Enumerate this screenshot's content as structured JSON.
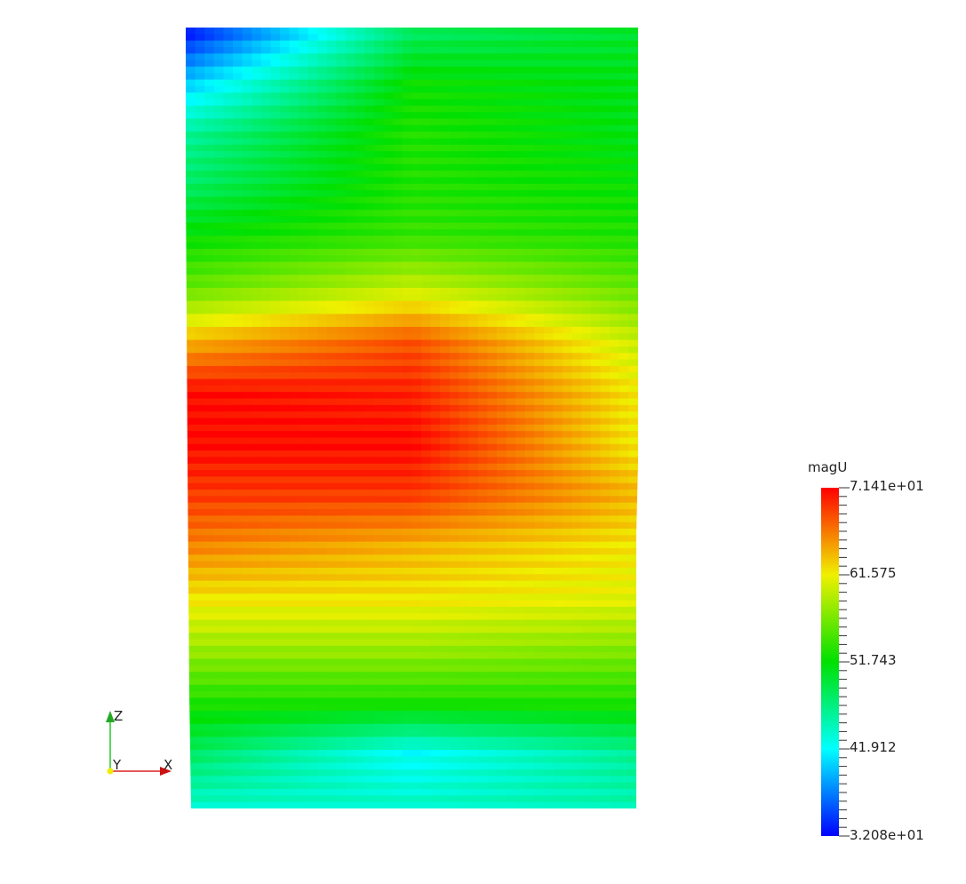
{
  "chart_data": {
    "type": "heatmap",
    "scalar_name": "magU",
    "colormap": "blue-cyan-green-yellow-red (rainbow)",
    "range": [
      32.08,
      71.41
    ],
    "colorbar_ticks": [
      {
        "value": 71.41,
        "label": "7.141e+01"
      },
      {
        "value": 61.575,
        "label": "61.575"
      },
      {
        "value": 51.743,
        "label": "51.743"
      },
      {
        "value": 41.912,
        "label": "41.912"
      },
      {
        "value": 32.08,
        "label": "3.208e+01"
      }
    ],
    "colorbar_placement": "right",
    "field_description_rows_top_to_bottom": [
      {
        "left": 33,
        "center": 48,
        "right": 50
      },
      {
        "left": 40,
        "center": 52,
        "right": 51
      },
      {
        "left": 46,
        "center": 53,
        "right": 51
      },
      {
        "left": 48,
        "center": 53,
        "right": 52
      },
      {
        "left": 52,
        "center": 54,
        "right": 53
      },
      {
        "left": 56,
        "center": 60,
        "right": 56
      },
      {
        "left": 64,
        "center": 68,
        "right": 60
      },
      {
        "left": 71,
        "center": 70,
        "right": 62
      },
      {
        "left": 71,
        "center": 71,
        "right": 62
      },
      {
        "left": 69,
        "center": 69,
        "right": 64
      },
      {
        "left": 66,
        "center": 64,
        "right": 62
      },
      {
        "left": 62,
        "center": 62,
        "right": 61
      },
      {
        "left": 58,
        "center": 58,
        "right": 57
      },
      {
        "left": 53,
        "center": 53,
        "right": 53
      },
      {
        "left": 48,
        "center": 42,
        "right": 46
      },
      {
        "left": 44,
        "center": 44,
        "right": 45
      }
    ],
    "axes_triad": {
      "x": "X",
      "y": "Y",
      "z": "Z"
    }
  }
}
